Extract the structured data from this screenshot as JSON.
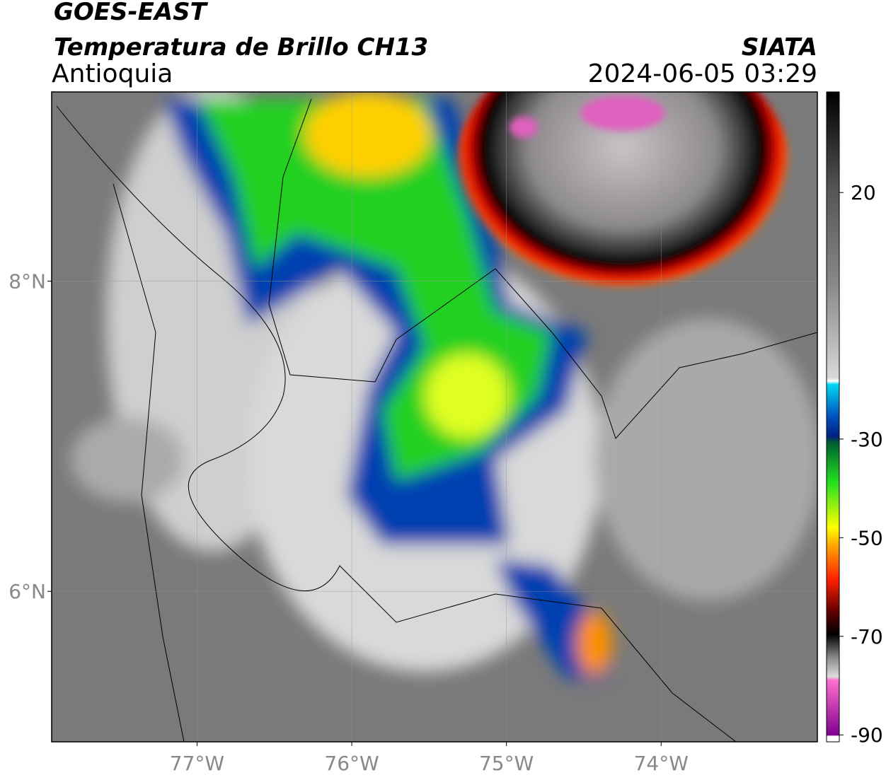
{
  "header": {
    "title": "GOES-EAST",
    "subtitle": "Temperatura de Brillo CH13",
    "region": "Antioquia",
    "source": "SIATA",
    "timestamp": "2024-06-05 03:29"
  },
  "map": {
    "xlim": [
      -77.94,
      -72.99
    ],
    "ylim": [
      5.03,
      9.22
    ],
    "xticks": [
      {
        "value": -77,
        "label": "77°W"
      },
      {
        "value": -76,
        "label": "76°W"
      },
      {
        "value": -75,
        "label": "75°W"
      },
      {
        "value": -74,
        "label": "74°W"
      }
    ],
    "yticks": [
      {
        "value": 8,
        "label": "8°N"
      },
      {
        "value": 6,
        "label": "6°N"
      }
    ],
    "grid": true
  },
  "colorbar": {
    "lim": [
      -91.4,
      40.4
    ],
    "ticks": [
      20,
      -30,
      -50,
      -70,
      -90
    ]
  }
}
